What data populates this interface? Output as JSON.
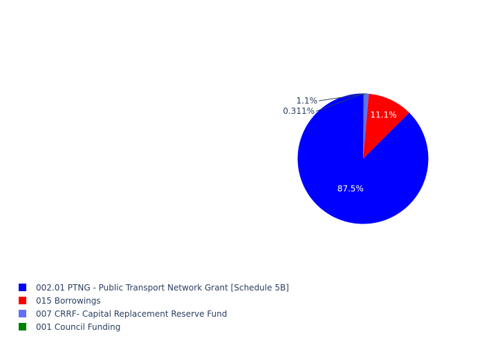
{
  "chart_data": {
    "type": "pie",
    "labels": [
      "002.01 PTNG - Public Transport Network Grant [Schedule 5B]",
      "015 Borrowings",
      "007 CRRF- Capital Replacement Reserve Fund",
      "001 Council Funding"
    ],
    "values": [
      87.5,
      11.1,
      1.1,
      0.311
    ],
    "text_labels": [
      "87.5%",
      "11.1%",
      "1.1%",
      "0.311%"
    ],
    "colors": [
      "#0000ff",
      "#ff0000",
      "#636efa",
      "#008000"
    ],
    "legend_position": "bottom-left"
  }
}
